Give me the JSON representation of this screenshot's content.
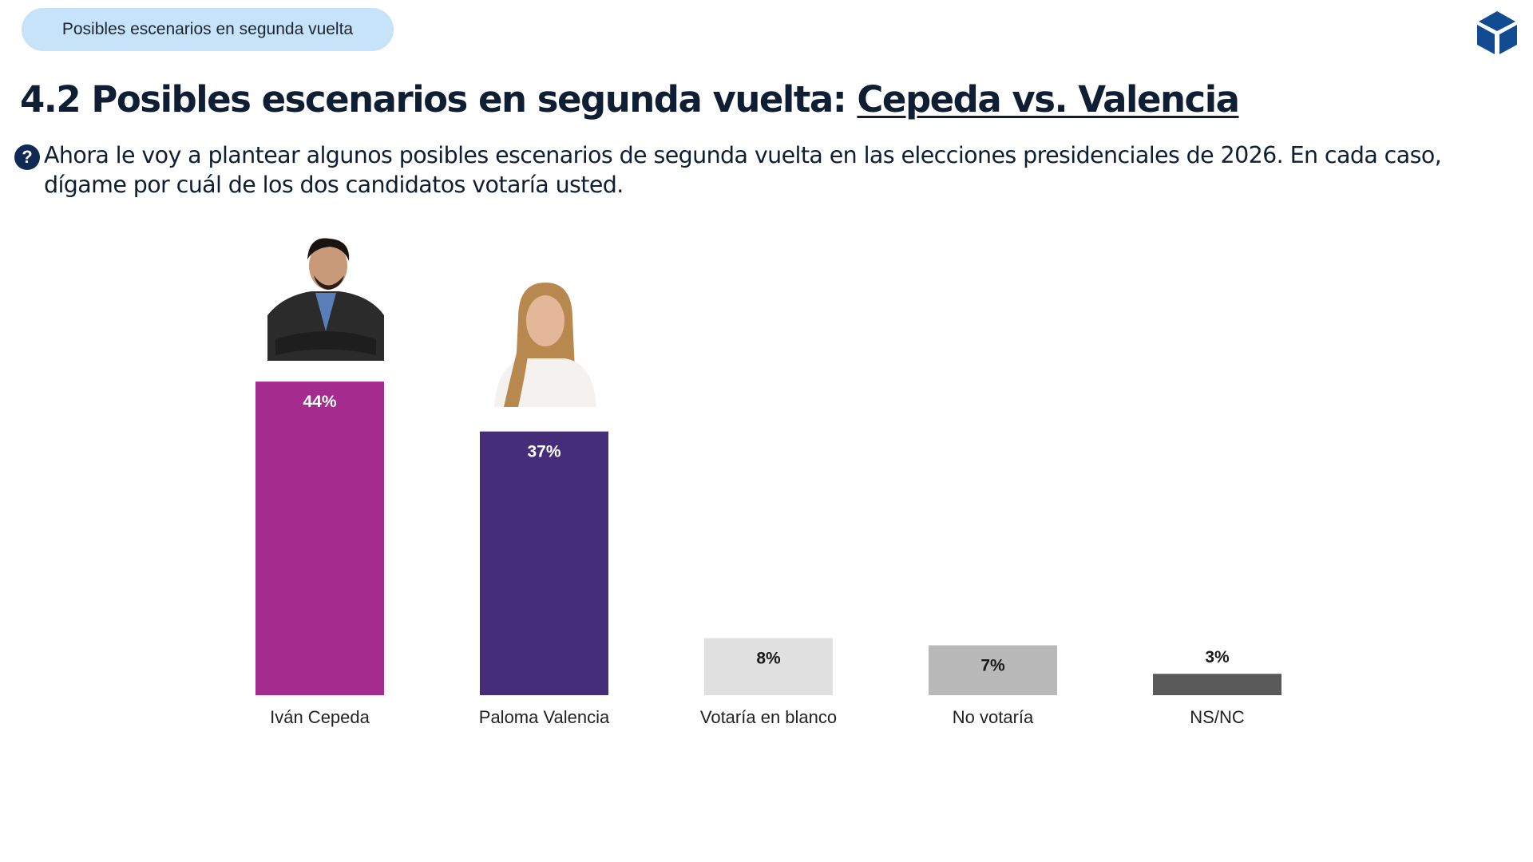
{
  "header": {
    "section_pill": "Posibles escenarios en segunda vuelta",
    "title_prefix": "4.2 Posibles escenarios en segunda vuelta: ",
    "title_highlight": "Cepeda vs. Valencia",
    "question": "Ahora le voy a plantear algunos posibles escenarios de segunda vuelta en las elecciones presidenciales de 2026. En cada caso, dígame por cuál de los dos candidatos votaría usted.",
    "question_icon": "question-circle-icon",
    "logo_icon": "cube-icon"
  },
  "chart_data": {
    "type": "bar",
    "categories": [
      "Iván Cepeda",
      "Paloma Valencia",
      "Votaría en blanco",
      "No votaría",
      "NS/NC"
    ],
    "values": [
      44,
      37,
      8,
      7,
      3
    ],
    "data_labels": [
      "44%",
      "37%",
      "8%",
      "7%",
      "3%"
    ],
    "colors": [
      "#a32c8e",
      "#462d7a",
      "#e0e0e0",
      "#b9b9b9",
      "#595959"
    ],
    "label_colors": [
      "#ffffff",
      "#ffffff",
      "#1a1a1a",
      "#1a1a1a",
      "#1a1a1a"
    ],
    "ylim": [
      0,
      50
    ],
    "grid": false,
    "legend": "none",
    "candidate_photos": [
      "Iván Cepeda",
      "Paloma Valencia"
    ]
  }
}
